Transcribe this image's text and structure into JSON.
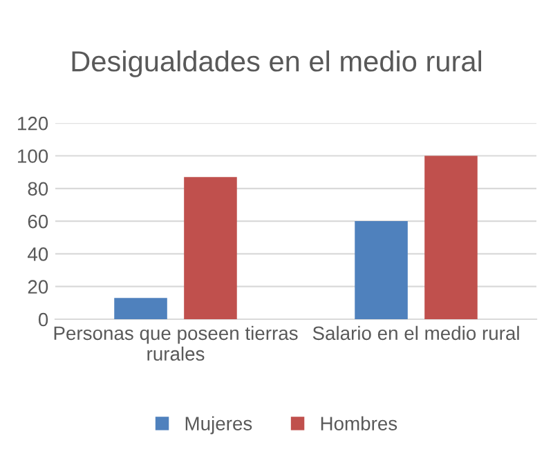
{
  "chart_data": {
    "type": "bar",
    "title": "Desigualdades en el medio rural",
    "categories": [
      "Personas que poseen tierras rurales",
      "Salario en el medio rural"
    ],
    "series": [
      {
        "name": "Mujeres",
        "color": "#4f81bd",
        "values": [
          13,
          60
        ]
      },
      {
        "name": "Hombres",
        "color": "#c0504d",
        "values": [
          87,
          100
        ]
      }
    ],
    "ylim": [
      0,
      120
    ],
    "yticks": [
      0,
      20,
      40,
      60,
      80,
      100,
      120
    ],
    "grid": "y",
    "legend": "bottom"
  }
}
